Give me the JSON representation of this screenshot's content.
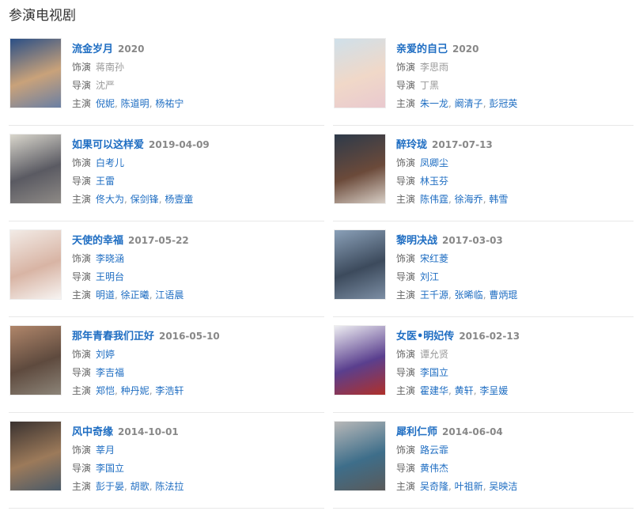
{
  "section_title": "参演电视剧",
  "labels": {
    "role": "饰演",
    "director": "导演",
    "cast": "主演"
  },
  "colors": {
    "link": "#1e6dc2",
    "muted": "#999999"
  },
  "items": [
    {
      "name": "流金岁月",
      "date": "2020",
      "role": {
        "text": "蒋南孙",
        "link": false
      },
      "director": {
        "text": "沈严",
        "link": false
      },
      "cast": [
        "倪妮",
        "陈道明",
        "杨祐宁"
      ],
      "poster": [
        "#2b4f86",
        "#c9a27a",
        "#6a7fa3"
      ]
    },
    {
      "name": "亲爱的自己",
      "date": "2020",
      "role": {
        "text": "李思雨",
        "link": false
      },
      "director": {
        "text": "丁黑",
        "link": false
      },
      "cast": [
        "朱一龙",
        "阚清子",
        "彭冠英"
      ],
      "poster": [
        "#cfe0ea",
        "#f0d8c8",
        "#e9c9cf"
      ]
    },
    {
      "name": "如果可以这样爱",
      "date": "2019-04-09",
      "role": {
        "text": "白考儿",
        "link": true
      },
      "director": {
        "text": "王雷",
        "link": true
      },
      "cast": [
        "佟大为",
        "保剑锋",
        "杨壹童"
      ],
      "poster": [
        "#d9d6cc",
        "#5a5a62",
        "#8e8a86"
      ]
    },
    {
      "name": "醉玲珑",
      "date": "2017-07-13",
      "role": {
        "text": "凤卿尘",
        "link": true
      },
      "director": {
        "text": "林玉芬",
        "link": true
      },
      "cast": [
        "陈伟霆",
        "徐海乔",
        "韩雪"
      ],
      "poster": [
        "#2d3a4a",
        "#6b4a3a",
        "#d8cfc6"
      ]
    },
    {
      "name": "天使的幸福",
      "date": "2017-05-22",
      "role": {
        "text": "李晓涵",
        "link": true
      },
      "director": {
        "text": "王明台",
        "link": true
      },
      "cast": [
        "明道",
        "徐正曦",
        "江语晨"
      ],
      "poster": [
        "#f2ebe6",
        "#d8b4a4",
        "#f7f4f2"
      ]
    },
    {
      "name": "黎明决战",
      "date": "2017-03-03",
      "role": {
        "text": "宋红菱",
        "link": true
      },
      "director": {
        "text": "刘江",
        "link": true
      },
      "cast": [
        "王千源",
        "张晞临",
        "曹炳琨"
      ],
      "poster": [
        "#8aa0b8",
        "#3c4a5c",
        "#7c8ea4"
      ]
    },
    {
      "name": "那年青春我们正好",
      "date": "2016-05-10",
      "role": {
        "text": "刘婷",
        "link": true
      },
      "director": {
        "text": "李吉福",
        "link": true
      },
      "cast": [
        "郑恺",
        "种丹妮",
        "李浩轩"
      ],
      "poster": [
        "#b0866a",
        "#5e4a3e",
        "#8c8478"
      ]
    },
    {
      "name": "女医•明妃传",
      "date": "2016-02-13",
      "role": {
        "text": "谭允贤",
        "link": false
      },
      "director": {
        "text": "李国立",
        "link": true
      },
      "cast": [
        "霍建华",
        "黄轩",
        "李呈媛"
      ],
      "poster": [
        "#eeeef2",
        "#5a3f8e",
        "#b0302a"
      ]
    },
    {
      "name": "风中奇缘",
      "date": "2014-10-01",
      "role": {
        "text": "莘月",
        "link": true
      },
      "director": {
        "text": "李国立",
        "link": true
      },
      "cast": [
        "彭于晏",
        "胡歌",
        "陈法拉"
      ],
      "poster": [
        "#3a3230",
        "#9c7a5a",
        "#4a5a68"
      ]
    },
    {
      "name": "犀利仁师",
      "date": "2014-06-04",
      "role": {
        "text": "路云霏",
        "link": true
      },
      "director": {
        "text": "黄伟杰",
        "link": true
      },
      "cast": [
        "吴奇隆",
        "叶祖新",
        "吴映洁"
      ],
      "poster": [
        "#b8b8b8",
        "#3e6e8a",
        "#5a5a5a"
      ]
    }
  ]
}
